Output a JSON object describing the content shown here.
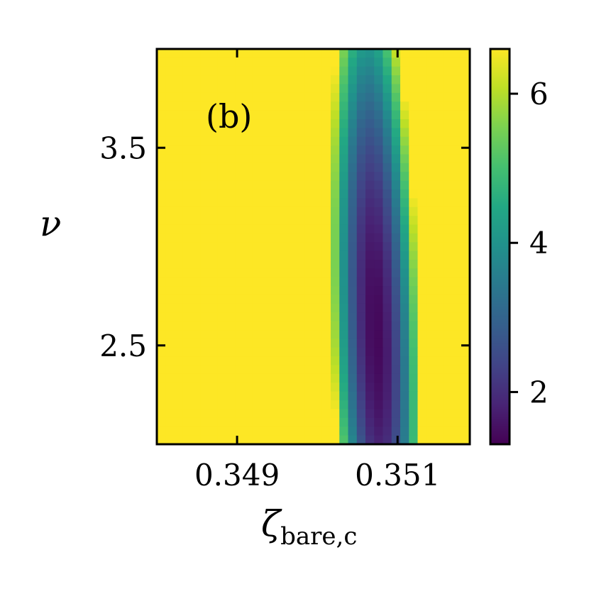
{
  "chart_data": {
    "type": "heatmap",
    "panel_label": "(b)",
    "xlabel": {
      "main": "ζ",
      "subscript": "bare,c"
    },
    "ylabel": "ν",
    "xlim": [
      0.348,
      0.3519
    ],
    "ylim": [
      2.0,
      4.0
    ],
    "x_ticks": [
      {
        "value": 0.349,
        "label": "0.349"
      },
      {
        "value": 0.351,
        "label": "0.351"
      }
    ],
    "y_ticks": [
      {
        "value": 2.5,
        "label": "2.5"
      },
      {
        "value": 3.5,
        "label": "3.5"
      }
    ],
    "colormap": "viridis",
    "colorbar": {
      "range": [
        1.3,
        6.6
      ],
      "ticks": [
        {
          "value": 2,
          "label": "2"
        },
        {
          "value": 4,
          "label": "4"
        },
        {
          "value": 6,
          "label": "6"
        }
      ]
    },
    "grid": {
      "nx": 36,
      "ny": 45
    },
    "minimum": {
      "x": 0.35073,
      "y": 2.57,
      "value": 1.4
    },
    "surface": {
      "base": 1.4,
      "coef_dx2": 17.0,
      "coef_dy2": 1.4,
      "coef_dxdy": 2.5,
      "dx_unit": 0.001
    },
    "grid_lines": false
  }
}
